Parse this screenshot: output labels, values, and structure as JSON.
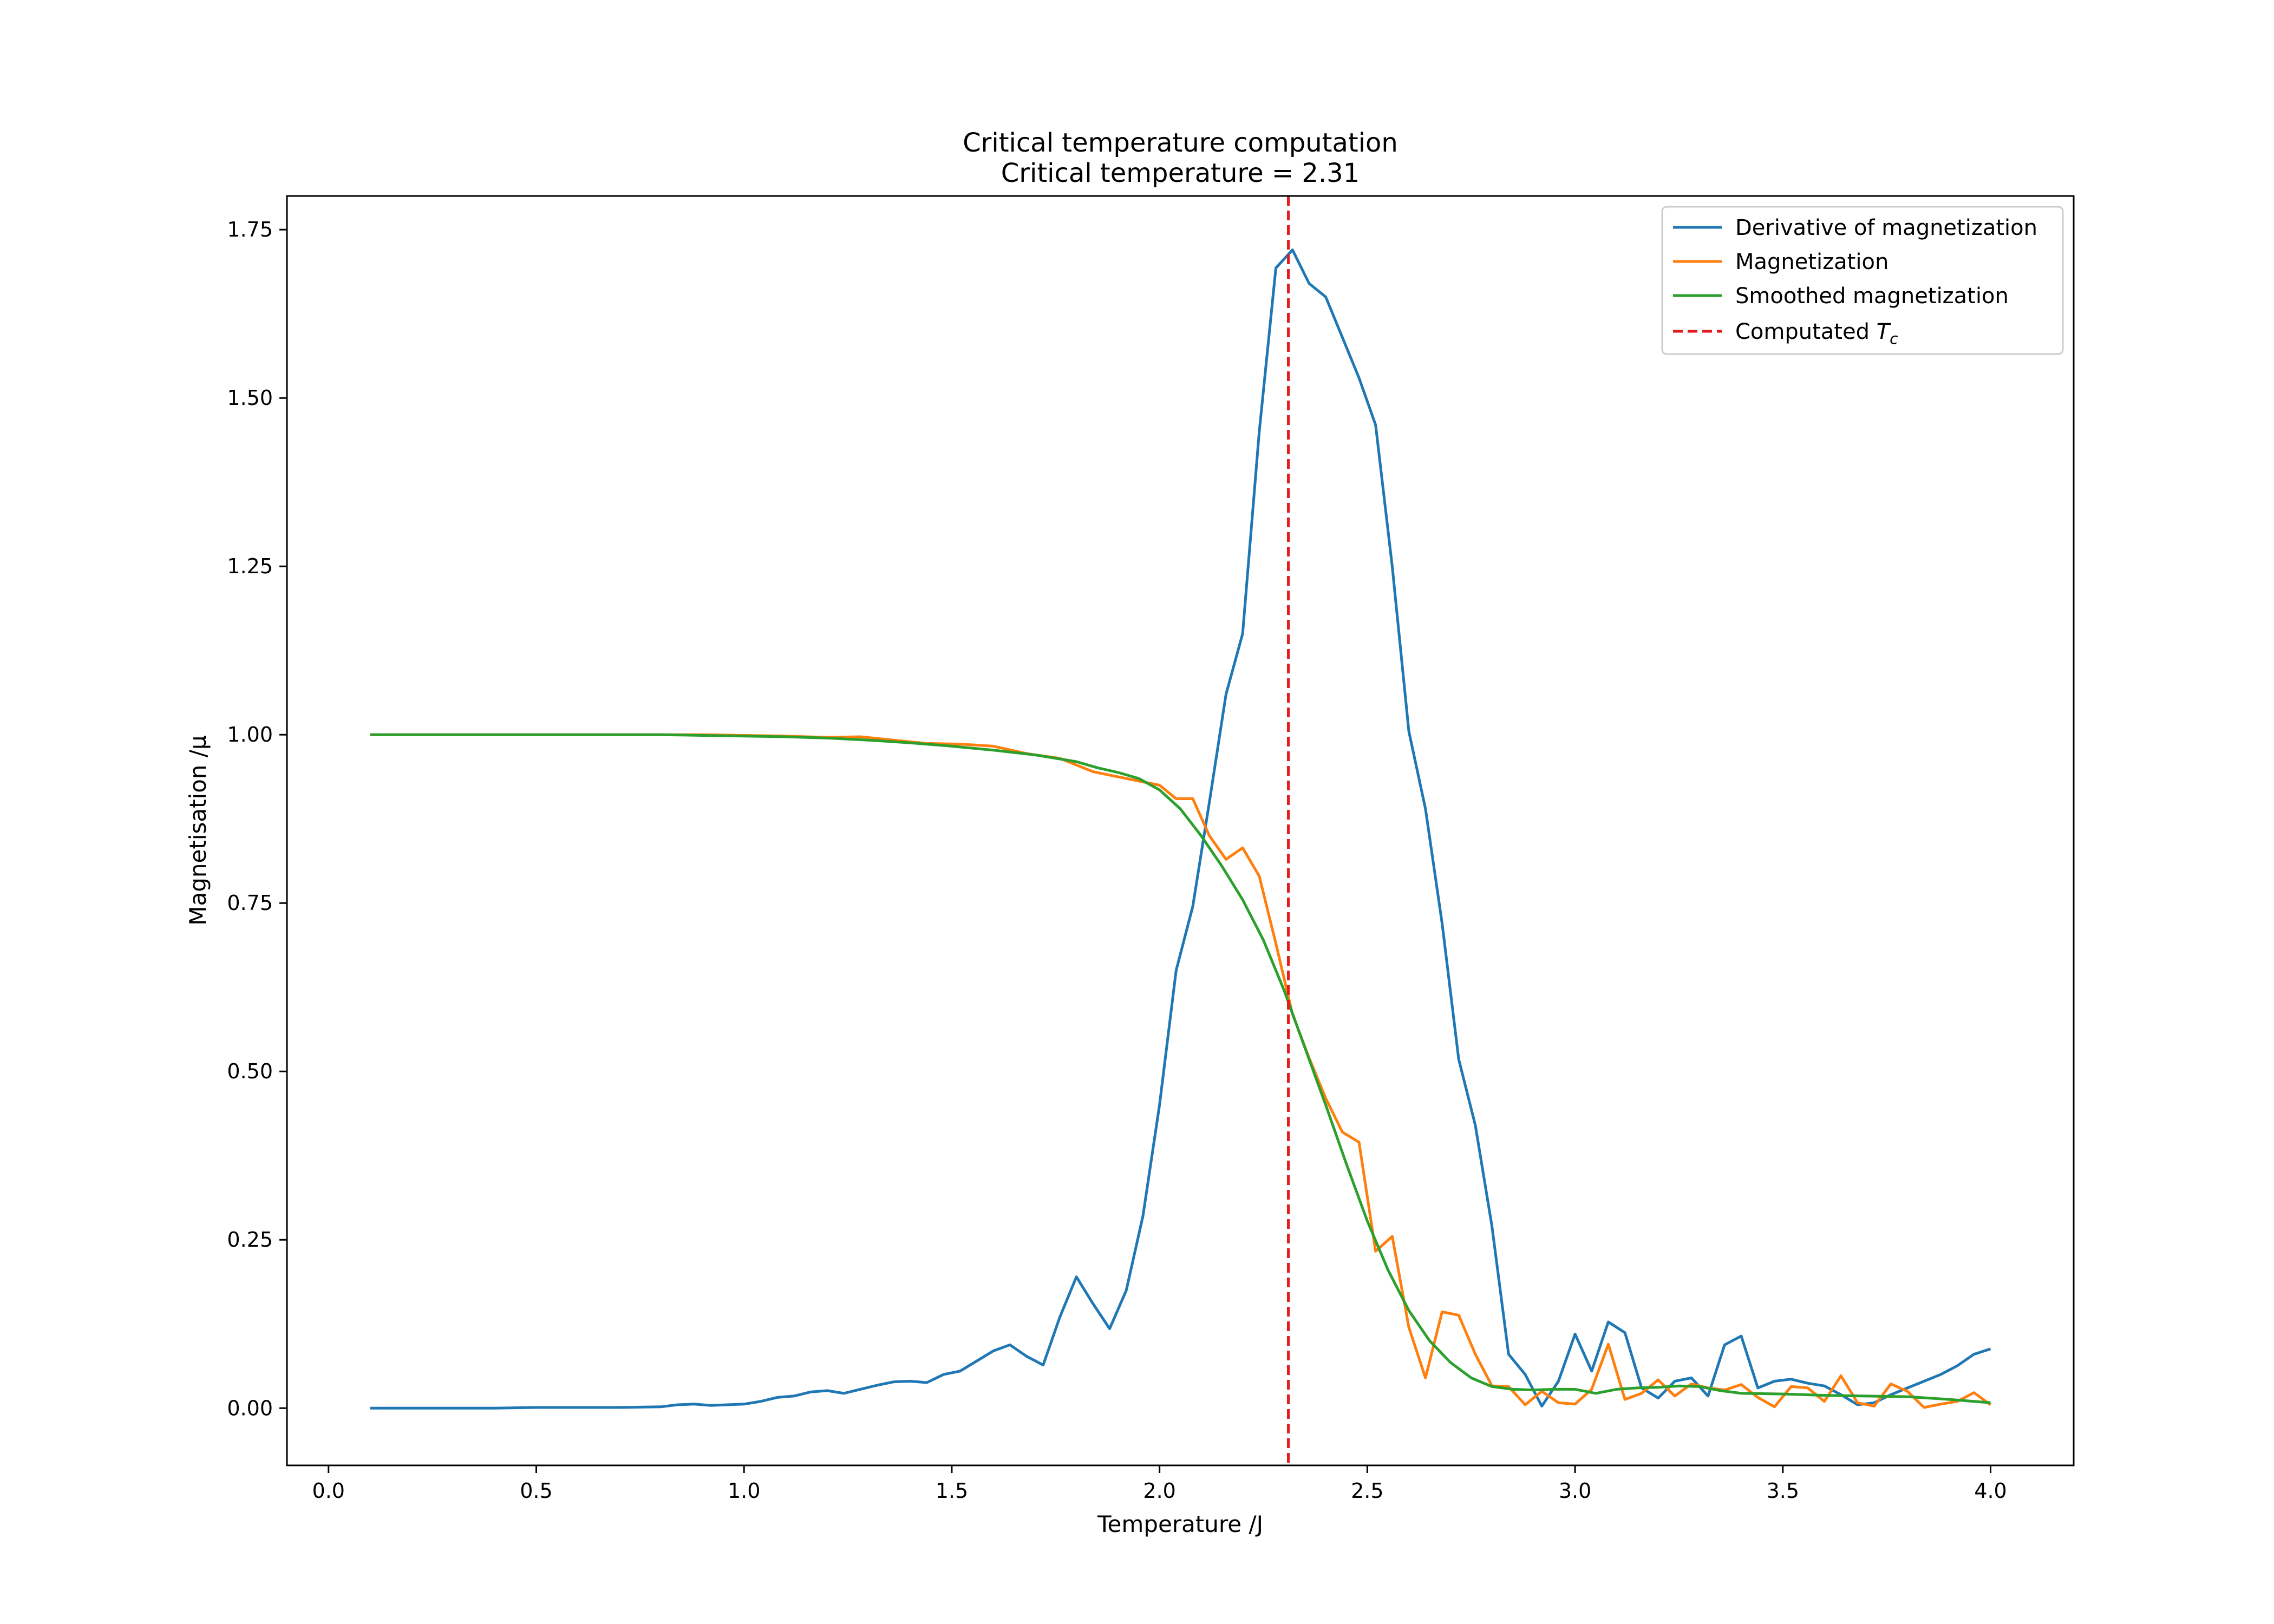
{
  "chart_data": {
    "type": "line",
    "title": "Critical temperature computation",
    "subtitle": "Critical temperature = 2.31",
    "xlabel": "Temperature /J",
    "ylabel": "Magnetisation /μ",
    "xlim": [
      -0.1,
      4.2
    ],
    "ylim": [
      -0.085,
      1.8
    ],
    "xticks": [
      0.0,
      0.5,
      1.0,
      1.5,
      2.0,
      2.5,
      3.0,
      3.5,
      4.0
    ],
    "xtick_labels": [
      "0.0",
      "0.5",
      "1.0",
      "1.5",
      "2.0",
      "2.5",
      "3.0",
      "3.5",
      "4.0"
    ],
    "yticks": [
      0.0,
      0.25,
      0.5,
      0.75,
      1.0,
      1.25,
      1.5,
      1.75
    ],
    "ytick_labels": [
      "0.00",
      "0.25",
      "0.50",
      "0.75",
      "1.00",
      "1.25",
      "1.50",
      "1.75"
    ],
    "grid": false,
    "legend_position": "top-right",
    "series": [
      {
        "name": "Derivative of magnetization",
        "color": "#1f77b4",
        "style": "solid",
        "x": [
          0.1,
          0.2,
          0.3,
          0.4,
          0.5,
          0.6,
          0.7,
          0.8,
          0.84,
          0.88,
          0.92,
          0.96,
          1.0,
          1.04,
          1.08,
          1.12,
          1.16,
          1.2,
          1.24,
          1.28,
          1.32,
          1.36,
          1.4,
          1.44,
          1.48,
          1.52,
          1.56,
          1.6,
          1.64,
          1.68,
          1.72,
          1.76,
          1.8,
          1.84,
          1.88,
          1.92,
          1.96,
          2.0,
          2.04,
          2.08,
          2.12,
          2.16,
          2.2,
          2.24,
          2.28,
          2.32,
          2.36,
          2.4,
          2.44,
          2.48,
          2.52,
          2.56,
          2.6,
          2.64,
          2.68,
          2.72,
          2.76,
          2.8,
          2.84,
          2.88,
          2.92,
          2.96,
          3.0,
          3.04,
          3.08,
          3.12,
          3.16,
          3.2,
          3.24,
          3.28,
          3.32,
          3.36,
          3.4,
          3.44,
          3.48,
          3.52,
          3.56,
          3.6,
          3.64,
          3.68,
          3.72,
          3.76,
          3.8,
          3.84,
          3.88,
          3.92,
          3.96,
          4.0
        ],
        "y": [
          0.0,
          0.0,
          0.0,
          0.0,
          0.001,
          0.001,
          0.001,
          0.002,
          0.005,
          0.006,
          0.004,
          0.005,
          0.006,
          0.01,
          0.016,
          0.018,
          0.024,
          0.026,
          0.022,
          0.028,
          0.034,
          0.039,
          0.04,
          0.038,
          0.05,
          0.055,
          0.07,
          0.085,
          0.094,
          0.077,
          0.064,
          0.135,
          0.195,
          0.155,
          0.118,
          0.175,
          0.285,
          0.45,
          0.65,
          0.745,
          0.9,
          1.06,
          1.15,
          1.45,
          1.693,
          1.72,
          1.67,
          1.65,
          1.59,
          1.53,
          1.46,
          1.25,
          1.005,
          0.89,
          0.72,
          0.518,
          0.42,
          0.27,
          0.08,
          0.05,
          0.003,
          0.04,
          0.11,
          0.055,
          0.128,
          0.112,
          0.03,
          0.015,
          0.04,
          0.045,
          0.018,
          0.094,
          0.107,
          0.03,
          0.04,
          0.043,
          0.037,
          0.033,
          0.02,
          0.005,
          0.008,
          0.02,
          0.03,
          0.04,
          0.05,
          0.063,
          0.08,
          0.088
        ]
      },
      {
        "name": "Magnetization",
        "color": "#ff7f0e",
        "style": "solid",
        "x": [
          0.1,
          0.2,
          0.3,
          0.4,
          0.5,
          0.6,
          0.7,
          0.8,
          0.9,
          1.0,
          1.1,
          1.2,
          1.28,
          1.36,
          1.44,
          1.52,
          1.6,
          1.68,
          1.76,
          1.84,
          1.92,
          2.0,
          2.04,
          2.08,
          2.12,
          2.16,
          2.2,
          2.24,
          2.28,
          2.32,
          2.36,
          2.4,
          2.44,
          2.48,
          2.52,
          2.56,
          2.6,
          2.64,
          2.68,
          2.72,
          2.76,
          2.8,
          2.84,
          2.88,
          2.92,
          2.96,
          3.0,
          3.04,
          3.08,
          3.12,
          3.16,
          3.2,
          3.24,
          3.28,
          3.32,
          3.36,
          3.4,
          3.44,
          3.48,
          3.52,
          3.56,
          3.6,
          3.64,
          3.68,
          3.72,
          3.76,
          3.8,
          3.84,
          3.88,
          3.92,
          3.96,
          4.0
        ],
        "y": [
          1.0,
          1.0,
          1.0,
          1.0,
          1.0,
          1.0,
          1.0,
          1.0,
          1.0,
          0.999,
          0.998,
          0.996,
          0.997,
          0.992,
          0.987,
          0.986,
          0.983,
          0.972,
          0.965,
          0.945,
          0.935,
          0.925,
          0.905,
          0.905,
          0.85,
          0.815,
          0.832,
          0.79,
          0.69,
          0.585,
          0.52,
          0.46,
          0.41,
          0.395,
          0.233,
          0.255,
          0.12,
          0.045,
          0.143,
          0.138,
          0.08,
          0.033,
          0.032,
          0.005,
          0.025,
          0.008,
          0.006,
          0.028,
          0.095,
          0.013,
          0.022,
          0.042,
          0.018,
          0.036,
          0.03,
          0.027,
          0.035,
          0.016,
          0.002,
          0.032,
          0.03,
          0.01,
          0.048,
          0.008,
          0.003,
          0.036,
          0.025,
          0.001,
          0.006,
          0.01,
          0.023,
          0.005
        ]
      },
      {
        "name": "Smoothed magnetization",
        "color": "#2ca02c",
        "style": "solid",
        "x": [
          0.1,
          0.2,
          0.3,
          0.4,
          0.5,
          0.6,
          0.7,
          0.8,
          0.9,
          1.0,
          1.1,
          1.2,
          1.3,
          1.4,
          1.5,
          1.6,
          1.7,
          1.8,
          1.85,
          1.9,
          1.95,
          2.0,
          2.05,
          2.1,
          2.15,
          2.2,
          2.25,
          2.3,
          2.35,
          2.4,
          2.45,
          2.5,
          2.55,
          2.6,
          2.65,
          2.7,
          2.75,
          2.8,
          2.85,
          2.9,
          2.95,
          3.0,
          3.05,
          3.1,
          3.15,
          3.2,
          3.25,
          3.3,
          3.35,
          3.4,
          3.5,
          3.6,
          3.7,
          3.8,
          3.9,
          4.0
        ],
        "y": [
          1.0,
          1.0,
          1.0,
          1.0,
          1.0,
          1.0,
          1.0,
          1.0,
          0.999,
          0.998,
          0.997,
          0.995,
          0.992,
          0.988,
          0.983,
          0.977,
          0.97,
          0.96,
          0.951,
          0.944,
          0.935,
          0.918,
          0.89,
          0.85,
          0.805,
          0.755,
          0.695,
          0.62,
          0.535,
          0.45,
          0.362,
          0.278,
          0.205,
          0.145,
          0.1,
          0.068,
          0.045,
          0.032,
          0.028,
          0.027,
          0.028,
          0.028,
          0.022,
          0.028,
          0.03,
          0.031,
          0.033,
          0.032,
          0.026,
          0.022,
          0.021,
          0.019,
          0.018,
          0.017,
          0.013,
          0.008
        ]
      },
      {
        "name": "Computated T_c",
        "color": "#e41a1c",
        "style": "dashed",
        "vline_x": 2.31
      }
    ]
  }
}
